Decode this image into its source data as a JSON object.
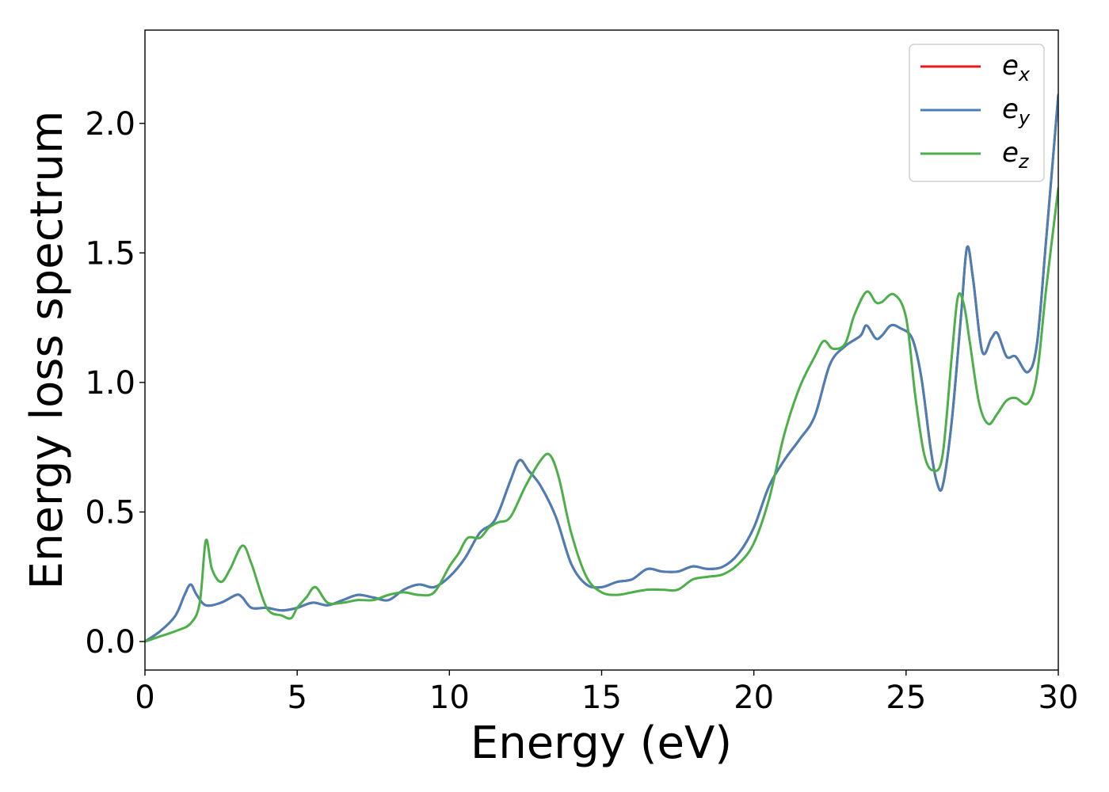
{
  "chart_data": {
    "type": "line",
    "xlabel": "Energy (eV)",
    "ylabel": "Energy loss spectrum",
    "xlim": [
      0,
      30
    ],
    "ylim": [
      -0.11,
      2.36
    ],
    "xticks": [
      0,
      5,
      10,
      15,
      20,
      25,
      30
    ],
    "xtick_labels": [
      "0",
      "5",
      "10",
      "15",
      "20",
      "25",
      "30"
    ],
    "yticks": [
      0.0,
      0.5,
      1.0,
      1.5,
      2.0
    ],
    "ytick_labels": [
      "0.0",
      "0.5",
      "1.0",
      "1.5",
      "2.0"
    ],
    "grid": false,
    "legend_position": "top-right",
    "series": [
      {
        "name": "e_x",
        "legend_base": "e",
        "legend_sub": "x",
        "color": "#e41a1c",
        "x": [
          0,
          0.5,
          1.0,
          1.3,
          1.5,
          1.7,
          2.0,
          2.5,
          3.0,
          3.2,
          3.5,
          4.0,
          4.5,
          5.0,
          5.5,
          6.0,
          6.5,
          7.0,
          7.5,
          8.0,
          8.5,
          9.0,
          9.5,
          10.0,
          10.5,
          11.0,
          11.5,
          12.0,
          12.3,
          12.6,
          13.0,
          13.5,
          14.0,
          14.5,
          15.0,
          15.5,
          16.0,
          16.5,
          17.0,
          17.5,
          18.0,
          18.5,
          19.0,
          19.5,
          20.0,
          20.5,
          21.0,
          21.5,
          22.0,
          22.5,
          23.0,
          23.5,
          23.7,
          24.0,
          24.2,
          24.5,
          24.8,
          25.2,
          25.5,
          25.8,
          26.0,
          26.2,
          26.5,
          26.8,
          27.0,
          27.2,
          27.5,
          27.8,
          28.0,
          28.3,
          28.6,
          29.0,
          29.3,
          29.6,
          30.0
        ],
        "y": [
          0.0,
          0.04,
          0.1,
          0.18,
          0.22,
          0.18,
          0.14,
          0.15,
          0.18,
          0.17,
          0.13,
          0.13,
          0.12,
          0.13,
          0.15,
          0.14,
          0.16,
          0.18,
          0.17,
          0.16,
          0.2,
          0.22,
          0.21,
          0.25,
          0.32,
          0.42,
          0.47,
          0.62,
          0.7,
          0.66,
          0.6,
          0.48,
          0.3,
          0.22,
          0.21,
          0.23,
          0.24,
          0.28,
          0.27,
          0.27,
          0.29,
          0.28,
          0.29,
          0.34,
          0.44,
          0.6,
          0.7,
          0.78,
          0.87,
          1.07,
          1.14,
          1.18,
          1.22,
          1.17,
          1.18,
          1.22,
          1.21,
          1.17,
          1.02,
          0.75,
          0.62,
          0.6,
          0.85,
          1.25,
          1.52,
          1.4,
          1.12,
          1.17,
          1.19,
          1.1,
          1.1,
          1.04,
          1.15,
          1.55,
          2.11
        ]
      },
      {
        "name": "e_y",
        "legend_base": "e",
        "legend_sub": "y",
        "color": "#4a7fb6",
        "x": [
          0,
          0.5,
          1.0,
          1.3,
          1.5,
          1.7,
          2.0,
          2.5,
          3.0,
          3.2,
          3.5,
          4.0,
          4.5,
          5.0,
          5.5,
          6.0,
          6.5,
          7.0,
          7.5,
          8.0,
          8.5,
          9.0,
          9.5,
          10.0,
          10.5,
          11.0,
          11.5,
          12.0,
          12.3,
          12.6,
          13.0,
          13.5,
          14.0,
          14.5,
          15.0,
          15.5,
          16.0,
          16.5,
          17.0,
          17.5,
          18.0,
          18.5,
          19.0,
          19.5,
          20.0,
          20.5,
          21.0,
          21.5,
          22.0,
          22.5,
          23.0,
          23.5,
          23.7,
          24.0,
          24.2,
          24.5,
          24.8,
          25.2,
          25.5,
          25.8,
          26.0,
          26.2,
          26.5,
          26.8,
          27.0,
          27.2,
          27.5,
          27.8,
          28.0,
          28.3,
          28.6,
          29.0,
          29.3,
          29.6,
          30.0
        ],
        "y": [
          0.0,
          0.04,
          0.1,
          0.18,
          0.22,
          0.18,
          0.14,
          0.15,
          0.18,
          0.17,
          0.13,
          0.13,
          0.12,
          0.13,
          0.15,
          0.14,
          0.16,
          0.18,
          0.17,
          0.16,
          0.2,
          0.22,
          0.21,
          0.25,
          0.32,
          0.42,
          0.47,
          0.62,
          0.7,
          0.66,
          0.6,
          0.48,
          0.3,
          0.22,
          0.21,
          0.23,
          0.24,
          0.28,
          0.27,
          0.27,
          0.29,
          0.28,
          0.29,
          0.34,
          0.44,
          0.6,
          0.7,
          0.78,
          0.87,
          1.07,
          1.14,
          1.18,
          1.22,
          1.17,
          1.18,
          1.22,
          1.21,
          1.17,
          1.02,
          0.75,
          0.62,
          0.6,
          0.85,
          1.25,
          1.52,
          1.4,
          1.12,
          1.17,
          1.19,
          1.1,
          1.1,
          1.04,
          1.15,
          1.55,
          2.11
        ]
      },
      {
        "name": "e_z",
        "legend_base": "e",
        "legend_sub": "z",
        "color": "#4daf4a",
        "x": [
          0,
          0.5,
          1.0,
          1.5,
          1.8,
          2.0,
          2.2,
          2.5,
          2.8,
          3.2,
          3.5,
          4.0,
          4.5,
          4.8,
          5.0,
          5.3,
          5.6,
          6.0,
          6.5,
          7.0,
          7.5,
          8.0,
          8.5,
          9.0,
          9.5,
          10.0,
          10.3,
          10.6,
          11.0,
          11.3,
          11.6,
          12.0,
          12.5,
          13.0,
          13.3,
          13.6,
          14.0,
          14.5,
          15.0,
          15.5,
          16.0,
          16.5,
          17.0,
          17.5,
          18.0,
          18.5,
          19.0,
          19.5,
          20.0,
          20.5,
          21.0,
          21.5,
          22.0,
          22.3,
          22.6,
          23.0,
          23.3,
          23.7,
          24.0,
          24.2,
          24.6,
          25.0,
          25.3,
          25.6,
          25.9,
          26.2,
          26.5,
          26.7,
          26.9,
          27.1,
          27.4,
          27.7,
          28.0,
          28.3,
          28.6,
          29.0,
          29.3,
          29.6,
          30.0
        ],
        "y": [
          0.0,
          0.02,
          0.04,
          0.07,
          0.15,
          0.39,
          0.28,
          0.23,
          0.28,
          0.37,
          0.3,
          0.13,
          0.1,
          0.09,
          0.13,
          0.17,
          0.21,
          0.15,
          0.15,
          0.16,
          0.16,
          0.18,
          0.19,
          0.18,
          0.19,
          0.29,
          0.34,
          0.4,
          0.4,
          0.44,
          0.46,
          0.48,
          0.6,
          0.7,
          0.72,
          0.63,
          0.42,
          0.25,
          0.19,
          0.18,
          0.19,
          0.2,
          0.2,
          0.2,
          0.24,
          0.25,
          0.26,
          0.3,
          0.38,
          0.55,
          0.8,
          0.98,
          1.1,
          1.16,
          1.13,
          1.15,
          1.26,
          1.35,
          1.31,
          1.31,
          1.34,
          1.25,
          0.95,
          0.72,
          0.66,
          0.72,
          1.1,
          1.33,
          1.3,
          1.15,
          0.92,
          0.84,
          0.88,
          0.93,
          0.94,
          0.92,
          1.03,
          1.36,
          1.75
        ]
      }
    ]
  }
}
